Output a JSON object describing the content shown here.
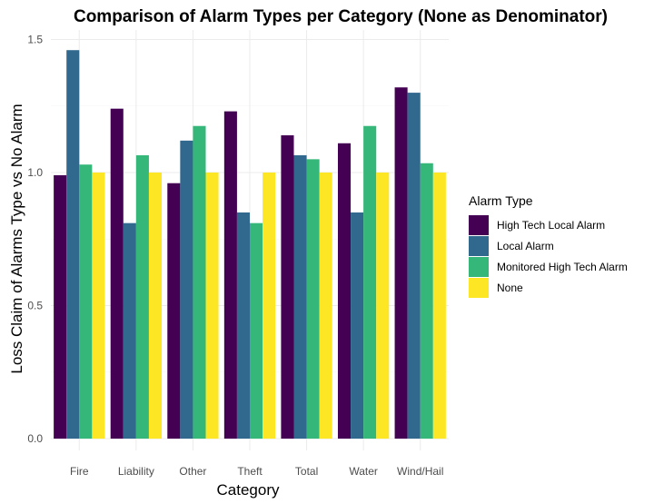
{
  "chart_data": {
    "type": "bar",
    "title": "Comparison of Alarm Types per Category (None as Denominator)",
    "xlabel": "Category",
    "ylabel": "Loss Claim of Alarms Type vs No Alarm",
    "ylim": [
      0,
      1.5
    ],
    "yticks": [
      "0.0",
      "0.5",
      "1.0",
      "1.5"
    ],
    "ytick_values": [
      0,
      0.5,
      1.0,
      1.5
    ],
    "grid": true,
    "legend_title": "Alarm Type",
    "legend_position": "right",
    "categories": [
      "Fire",
      "Liability",
      "Other",
      "Theft",
      "Total",
      "Water",
      "Wind/Hail"
    ],
    "series": [
      {
        "name": "High Tech Local Alarm",
        "color": "#440154",
        "values": [
          0.99,
          1.24,
          0.96,
          1.23,
          1.14,
          1.11,
          1.32
        ]
      },
      {
        "name": "Local Alarm",
        "color": "#31688e",
        "values": [
          1.46,
          0.81,
          1.12,
          0.85,
          1.065,
          0.85,
          1.3
        ]
      },
      {
        "name": "Monitored High Tech Alarm",
        "color": "#35b779",
        "values": [
          1.03,
          1.065,
          1.175,
          0.81,
          1.05,
          1.175,
          1.035
        ]
      },
      {
        "name": "None",
        "color": "#fde725",
        "values": [
          1.0,
          1.0,
          1.0,
          1.0,
          1.0,
          1.0,
          1.0
        ]
      }
    ]
  }
}
